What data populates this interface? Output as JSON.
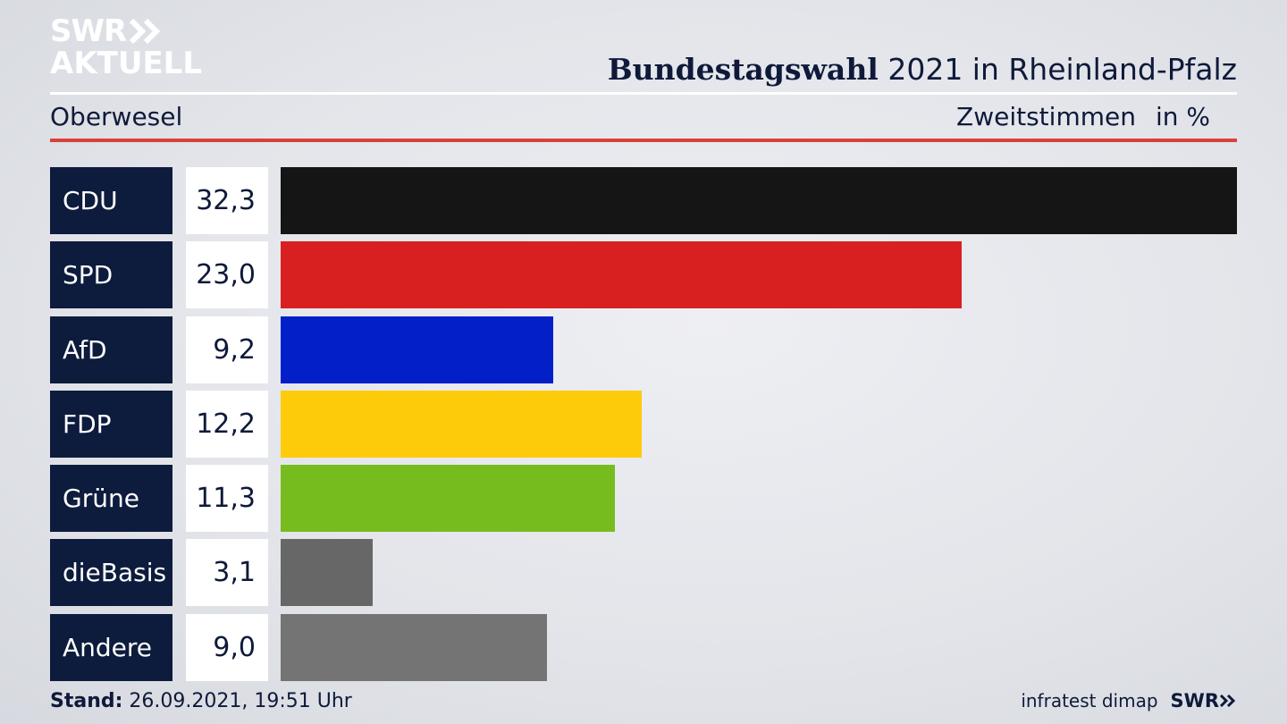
{
  "logo": {
    "line1": "SWR",
    "line2": "AKTUELL"
  },
  "header": {
    "title_bold": "Bundestagswahl",
    "title_rest": " 2021 in Rheinland-Pfalz",
    "subtitle": "Oberwesel",
    "measure": "Zweitstimmen",
    "unit": "in %"
  },
  "chart_data": {
    "type": "bar",
    "orientation": "horizontal",
    "categories": [
      "CDU",
      "SPD",
      "AfD",
      "FDP",
      "Grüne",
      "dieBasis",
      "Andere"
    ],
    "values": [
      32.3,
      23.0,
      9.2,
      12.2,
      11.3,
      3.1,
      9.0
    ],
    "value_labels": [
      "32,3",
      "23,0",
      "9,2",
      "12,2",
      "11,3",
      "3,1",
      "9,0"
    ],
    "colors": [
      "#151515",
      "#d92020",
      "#0320c8",
      "#fdcb0a",
      "#77bc1f",
      "#676767",
      "#747474"
    ],
    "title": "Bundestagswahl 2021 in Rheinland-Pfalz",
    "subtitle": "Oberwesel",
    "unit": "in %",
    "xlim": [
      0,
      32.3
    ]
  },
  "footer": {
    "stand_label": "Stand:",
    "stand_value": " 26.09.2021, 19:51 Uhr",
    "source": "infratest dimap",
    "brand": "SWR"
  }
}
